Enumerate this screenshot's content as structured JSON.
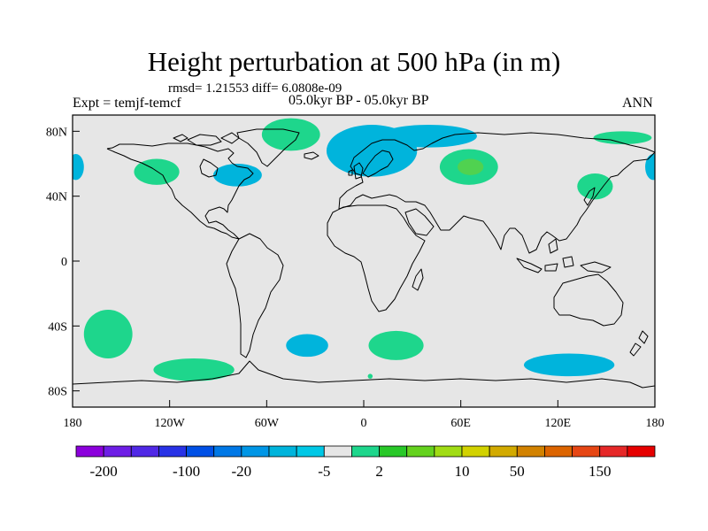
{
  "title": "Height perturbation at 500 hPa (in m)",
  "stats": "rmsd= 1.21553 diff= 6.0808e-09",
  "experiment": "Expt = temjf-temcf",
  "period": "05.0kyr BP - 05.0kyr BP",
  "season": "ANN",
  "map": {
    "projection": "cylindrical-equidistant",
    "lon_range": [
      -180,
      180
    ],
    "lat_range": [
      -90,
      90
    ],
    "background_color": "#e6e6e6",
    "coastline_color": "#000000",
    "lon_ticks": [
      {
        "value": -180,
        "label": "180"
      },
      {
        "value": -120,
        "label": "120W"
      },
      {
        "value": -60,
        "label": "60W"
      },
      {
        "value": 0,
        "label": "0"
      },
      {
        "value": 60,
        "label": "60E"
      },
      {
        "value": 120,
        "label": "120E"
      },
      {
        "value": 180,
        "label": "180"
      }
    ],
    "lat_ticks": [
      {
        "value": 80,
        "label": "80N"
      },
      {
        "value": 40,
        "label": "40N"
      },
      {
        "value": 0,
        "label": "0"
      },
      {
        "value": -40,
        "label": "40S"
      },
      {
        "value": -80,
        "label": "80S"
      }
    ],
    "anomaly_regions": [
      {
        "name": "north-atlantic-europe-negative",
        "color": "#00b4dc",
        "lon": 5,
        "lat": 68,
        "rx": 28,
        "ry": 16
      },
      {
        "name": "north-atlantic-europe-negative-ext",
        "color": "#00b4dc",
        "lon": 40,
        "lat": 77,
        "rx": 30,
        "ry": 7
      },
      {
        "name": "greenland-positive",
        "color": "#1ed68c",
        "lon": -45,
        "lat": 78,
        "rx": 18,
        "ry": 10
      },
      {
        "name": "west-siberia-positive",
        "color": "#1ed68c",
        "lon": 65,
        "lat": 58,
        "rx": 18,
        "ry": 11
      },
      {
        "name": "west-siberia-positive-core",
        "color": "#50d250",
        "lon": 66,
        "lat": 58,
        "rx": 8,
        "ry": 5
      },
      {
        "name": "north-america-negative",
        "color": "#00b4dc",
        "lon": -78,
        "lat": 53,
        "rx": 15,
        "ry": 7
      },
      {
        "name": "north-america-positive",
        "color": "#1ed68c",
        "lon": -128,
        "lat": 55,
        "rx": 14,
        "ry": 8
      },
      {
        "name": "japan-positive",
        "color": "#1ed68c",
        "lon": 143,
        "lat": 46,
        "rx": 11,
        "ry": 8
      },
      {
        "name": "arctic-pacific-positive",
        "color": "#1ed68c",
        "lon": 160,
        "lat": 76,
        "rx": 18,
        "ry": 4
      },
      {
        "name": "north-pacific-negative-east",
        "color": "#00b4dc",
        "lon": -178,
        "lat": 58,
        "rx": 5,
        "ry": 8
      },
      {
        "name": "north-pacific-negative-west",
        "color": "#00b4dc",
        "lon": 179,
        "lat": 58,
        "rx": 5,
        "ry": 8
      },
      {
        "name": "south-pacific-positive",
        "color": "#1ed68c",
        "lon": -158,
        "lat": -45,
        "rx": 15,
        "ry": 15
      },
      {
        "name": "south-pacific-south-positive",
        "color": "#1ed68c",
        "lon": -105,
        "lat": -67,
        "rx": 25,
        "ry": 7
      },
      {
        "name": "south-atlantic-negative",
        "color": "#00b4dc",
        "lon": -35,
        "lat": -52,
        "rx": 13,
        "ry": 7
      },
      {
        "name": "south-atlantic-positive",
        "color": "#1ed68c",
        "lon": 20,
        "lat": -52,
        "rx": 17,
        "ry": 9
      },
      {
        "name": "southern-indian-negative",
        "color": "#00b4dc",
        "lon": 127,
        "lat": -64,
        "rx": 28,
        "ry": 7
      },
      {
        "name": "antarctic-small-positive",
        "color": "#1ed68c",
        "lon": 4,
        "lat": -71,
        "rx": 1.5,
        "ry": 1.5
      }
    ]
  },
  "colorbar": {
    "colors": [
      "#8c00dc",
      "#6e1ee6",
      "#5028e6",
      "#2832e6",
      "#0050e6",
      "#0078e6",
      "#0096e6",
      "#00b4dc",
      "#00c8e6",
      "#e6e6e6",
      "#1ed68c",
      "#28c828",
      "#64d21e",
      "#a0dc14",
      "#d2d200",
      "#d2aa00",
      "#d28200",
      "#dc6400",
      "#e64614",
      "#e62828",
      "#e60000"
    ],
    "labels": [
      "-200",
      "-100",
      "-20",
      "-5",
      "2",
      "10",
      "50",
      "150"
    ]
  }
}
